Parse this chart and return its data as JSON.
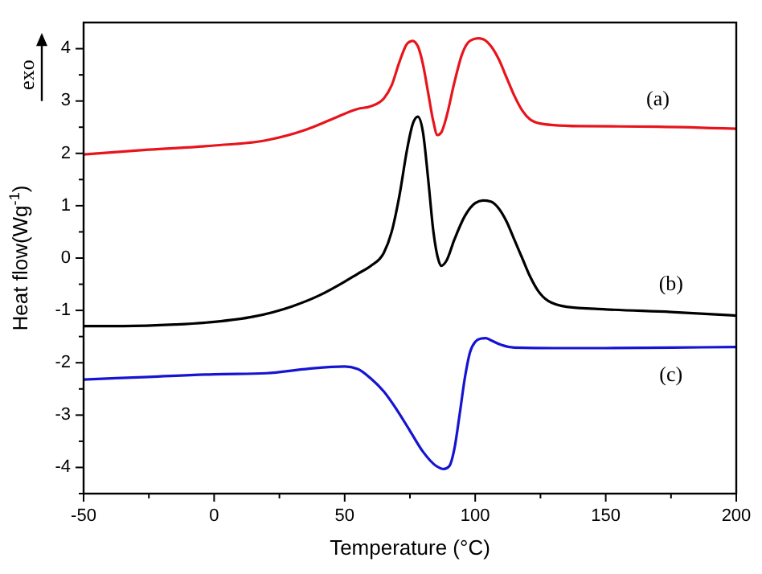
{
  "chart_data": {
    "type": "line",
    "xlabel": "Temperature (°C)",
    "ylabel": "Heat flow(Wg$^{-1}$)",
    "annotations": [
      "exo"
    ],
    "xlim": [
      -50,
      200
    ],
    "ylim": [
      -4.5,
      4.5
    ],
    "xticks": [
      -50,
      {
        "value": -25,
        "label": null
      },
      0,
      {
        "value": 25,
        "label": null
      },
      50,
      {
        "value": 75,
        "label": null
      },
      100,
      {
        "value": 125,
        "label": null
      },
      150,
      {
        "value": 175,
        "label": null
      },
      200
    ],
    "yticks": [
      {
        "value": -4.5,
        "label": null
      },
      -4,
      {
        "value": -3.5,
        "label": null
      },
      -3,
      {
        "value": -2.5,
        "label": null
      },
      -2,
      {
        "value": -1.5,
        "label": null
      },
      -1,
      {
        "value": -0.5,
        "label": null
      },
      0,
      {
        "value": 0.5,
        "label": null
      },
      1,
      {
        "value": 1.5,
        "label": null
      },
      2,
      {
        "value": 2.5,
        "label": null
      },
      3,
      {
        "value": 3.5,
        "label": null
      },
      4
    ],
    "grid": false,
    "line_style": "solid",
    "marker": "none",
    "series": [
      {
        "name": "(a)",
        "color": "#e8141c",
        "x": [
          -50,
          -25,
          0,
          20,
          35,
          45,
          55,
          60,
          65,
          68,
          71,
          74,
          76,
          78,
          80,
          82,
          84,
          85.5,
          87,
          89,
          92,
          95,
          98,
          101,
          103,
          106,
          109,
          112,
          115,
          118,
          121,
          125,
          130,
          140,
          170,
          200
        ],
        "values": [
          1.98,
          2.07,
          2.15,
          2.25,
          2.45,
          2.65,
          2.85,
          2.9,
          3.05,
          3.3,
          3.75,
          4.1,
          4.15,
          4.05,
          3.7,
          3.15,
          2.6,
          2.35,
          2.4,
          2.7,
          3.35,
          3.9,
          4.15,
          4.2,
          4.18,
          4.05,
          3.8,
          3.45,
          3.1,
          2.82,
          2.65,
          2.57,
          2.54,
          2.52,
          2.51,
          2.47
        ]
      },
      {
        "name": "(b)",
        "color": "#000000",
        "x": [
          -50,
          -35,
          -15,
          0,
          15,
          30,
          40,
          50,
          55,
          60,
          65,
          68,
          71,
          74,
          76,
          78,
          80,
          82,
          84,
          86,
          87,
          89,
          92,
          96,
          100,
          103,
          106,
          109,
          112,
          115,
          118,
          121,
          124,
          128,
          135,
          150,
          175,
          200
        ],
        "values": [
          -1.3,
          -1.3,
          -1.27,
          -1.22,
          -1.12,
          -0.92,
          -0.72,
          -0.45,
          -0.3,
          -0.15,
          0.1,
          0.5,
          1.2,
          2.1,
          2.55,
          2.7,
          2.4,
          1.5,
          0.5,
          -0.05,
          -0.15,
          -0.05,
          0.35,
          0.8,
          1.05,
          1.1,
          1.08,
          0.95,
          0.7,
          0.35,
          0.0,
          -0.35,
          -0.62,
          -0.82,
          -0.93,
          -0.98,
          -1.03,
          -1.1
        ]
      },
      {
        "name": "(c)",
        "color": "#1414d2",
        "x": [
          -50,
          -25,
          0,
          20,
          35,
          50,
          55,
          60,
          65,
          70,
          75,
          80,
          85,
          88,
          90,
          92,
          94,
          96,
          98,
          100,
          102,
          104,
          106,
          110,
          115,
          130,
          150,
          175,
          200
        ],
        "values": [
          -2.32,
          -2.27,
          -2.22,
          -2.2,
          -2.12,
          -2.07,
          -2.12,
          -2.3,
          -2.55,
          -2.9,
          -3.3,
          -3.7,
          -3.97,
          -4.03,
          -3.98,
          -3.65,
          -3.0,
          -2.3,
          -1.8,
          -1.6,
          -1.54,
          -1.53,
          -1.57,
          -1.66,
          -1.71,
          -1.72,
          -1.72,
          -1.71,
          -1.7
        ]
      }
    ]
  }
}
